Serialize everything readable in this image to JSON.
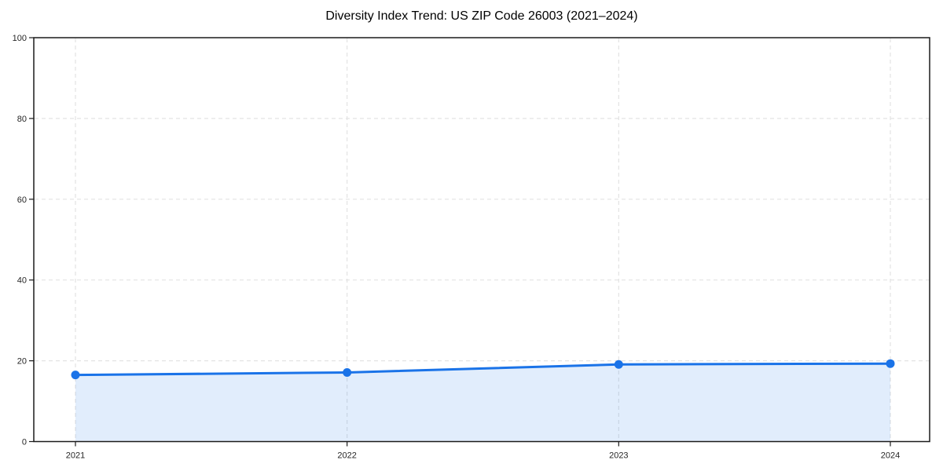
{
  "page": {
    "background": "#ffffff"
  },
  "chart_data": {
    "type": "line",
    "title": "Diversity Index Trend: US ZIP Code 26003 (2021–2024)",
    "series_name": "Diversity Index",
    "categories": [
      "2021",
      "2022",
      "2023",
      "2024"
    ],
    "values": [
      16.5,
      17.1,
      19.1,
      19.3
    ],
    "xlabel": "",
    "ylabel": "",
    "ylim": [
      0,
      100
    ],
    "yticks": [
      0,
      20,
      40,
      60,
      80,
      100
    ],
    "grid": "dashed",
    "grid_vertical_at_categories": true,
    "legend": false,
    "marker": "circle",
    "area_fill": true,
    "colors": {
      "line": "#1a73e8",
      "marker": "#1a73e8",
      "area_fill_hex": "#e8f0fd",
      "area_fill_rgba": "rgba(26,115,232,0.13)",
      "grid": "#e3e3e3",
      "spine": "#1a1a1a",
      "tick_label": "#262626",
      "title": "#000000"
    }
  }
}
